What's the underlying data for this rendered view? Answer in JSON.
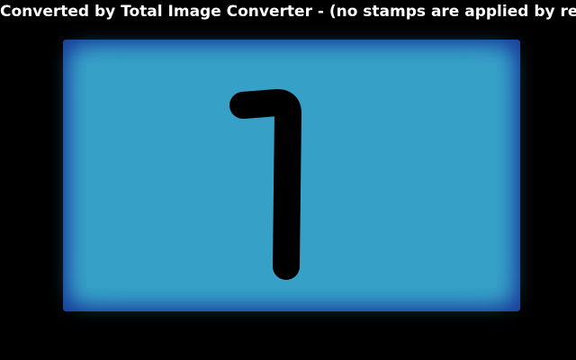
{
  "watermark": {
    "text": "Converted by Total Image Converter - (no stamps are applied by re"
  },
  "slide": {
    "glyph_text": "ך",
    "background_color": "#36a0c6",
    "edge_color": "#1a3f9a",
    "glyph_color": "#000000"
  }
}
